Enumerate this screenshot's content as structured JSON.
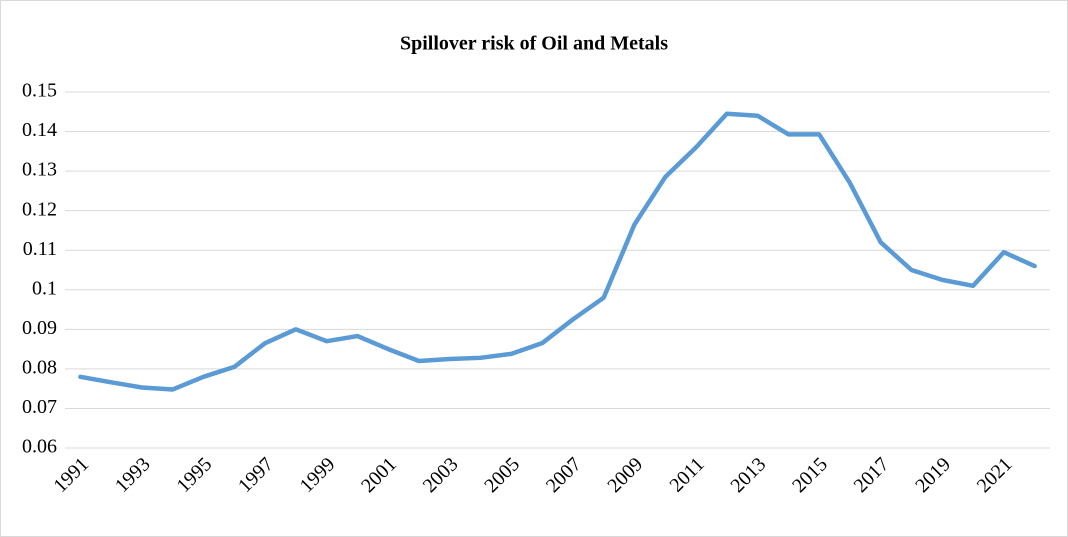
{
  "chart_data": {
    "type": "line",
    "title": "Spillover risk of Oil and Metals",
    "categories": [
      "1991",
      null,
      "1993",
      null,
      "1995",
      null,
      "1997",
      null,
      "1999",
      null,
      "2001",
      null,
      "2003",
      null,
      "2005",
      null,
      "2007",
      null,
      "2009",
      null,
      "2011",
      null,
      "2013",
      null,
      "2015",
      null,
      "2017",
      null,
      "2019",
      null,
      "2021",
      null
    ],
    "series": [
      {
        "color": "#5b9bd5",
        "values": [
          0.078,
          0.0766,
          0.0753,
          0.0748,
          0.078,
          0.0805,
          0.0865,
          0.09,
          0.087,
          0.0883,
          0.085,
          0.082,
          0.0825,
          0.0828,
          0.0838,
          0.0865,
          0.0925,
          0.098,
          0.1165,
          0.1285,
          0.136,
          0.1445,
          0.144,
          0.1393,
          0.1393,
          0.127,
          0.112,
          0.105,
          0.1025,
          0.101,
          0.1095,
          0.106
        ]
      }
    ],
    "ylim": [
      0.06,
      0.15
    ],
    "yticks": [
      0.06,
      0.07,
      0.08,
      0.09,
      0.1,
      0.11,
      0.12,
      0.13,
      0.14,
      0.15
    ],
    "grid": true
  }
}
